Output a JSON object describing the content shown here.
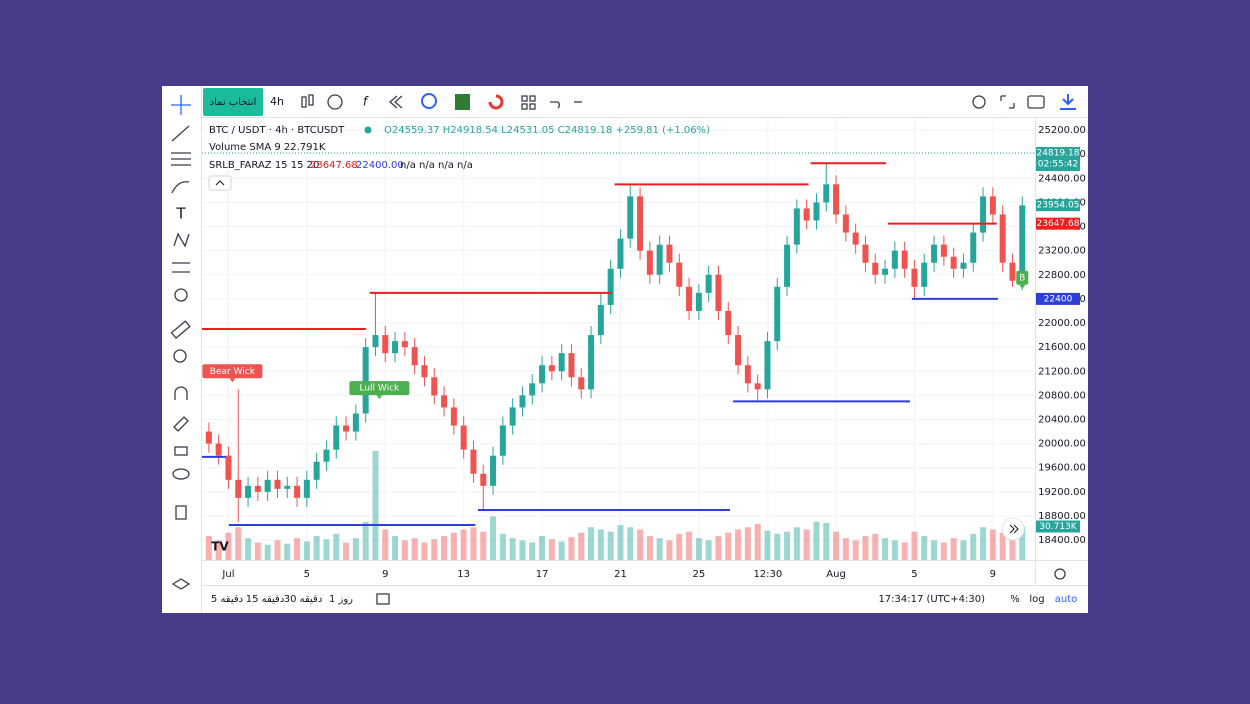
{
  "toolbar": {
    "symbol_button": "انتخاب نماد",
    "interval": "4h"
  },
  "legend": {
    "symbol": "BTC / USDT · 4h · BTCUSDT",
    "ohlc": "O24559.37 H24918.54 L24531.05 C24819.18 +259.81 (+1.06%)",
    "volume": "Volume SMA 9 22.791K",
    "indicator": "SRLB_FARAZ 15 15 20",
    "indicator_resistance": "23647.68",
    "indicator_support": "22400.00",
    "indicator_rest": "n/a n/a n/a n/a"
  },
  "bottom_bar": {
    "ranges": [
      "5 دقیقه",
      "15 دقیقه",
      "30 دقیقه",
      "1 روز"
    ],
    "clock": "17:34:17 (UTC+4:30)",
    "percent": "%",
    "log": "log",
    "auto": "auto"
  },
  "chart_data": {
    "type": "candlestick",
    "up_color": "#26a69a",
    "down_color": "#ef5350",
    "x": [
      -1,
      -0.5,
      0,
      0.5,
      1,
      1.5,
      2,
      2.5,
      3,
      3.5,
      4,
      4.5,
      5,
      5.5,
      6,
      6.5,
      7,
      7.5,
      8,
      8.5,
      9,
      9.5,
      10,
      10.5,
      11,
      11.5,
      12,
      12.5,
      13,
      13.5,
      14,
      14.5,
      15,
      15.5,
      16,
      16.5,
      17,
      17.5,
      18,
      18.5,
      19,
      19.5,
      20,
      20.5,
      21,
      21.5,
      22,
      22.5,
      23,
      23.5,
      24,
      24.5,
      25,
      25.5,
      26,
      26.5,
      27,
      27.5,
      28,
      28.5,
      29,
      29.5,
      30,
      30.5,
      31,
      31.5,
      32,
      32.5,
      33,
      33.5,
      34,
      34.5,
      35,
      35.5,
      36,
      36.5,
      37,
      37.5,
      38,
      38.5,
      39,
      39.5,
      40,
      40.5
    ],
    "open": [
      20200,
      20000,
      19800,
      19400,
      19100,
      19300,
      19200,
      19400,
      19250,
      19300,
      19100,
      19400,
      19700,
      19900,
      20300,
      20200,
      20500,
      21600,
      21800,
      21500,
      21700,
      21600,
      21300,
      21100,
      20800,
      20600,
      20300,
      19900,
      19500,
      19300,
      19800,
      20300,
      20600,
      20800,
      21000,
      21300,
      21200,
      21500,
      21100,
      20900,
      21800,
      22300,
      22900,
      23400,
      24100,
      23200,
      22800,
      23300,
      23000,
      22600,
      22200,
      22500,
      22800,
      22200,
      21800,
      21300,
      21000,
      20900,
      21700,
      22600,
      23300,
      23900,
      23700,
      24000,
      24300,
      23800,
      23500,
      23300,
      23000,
      22800,
      22900,
      23200,
      22900,
      22600,
      23000,
      23300,
      23100,
      22900,
      23000,
      23500,
      24100,
      23800,
      23000,
      22700
    ],
    "high": [
      20350,
      20150,
      19950,
      20900,
      19450,
      19450,
      19550,
      19550,
      19450,
      19450,
      19550,
      19850,
      20050,
      20450,
      20450,
      20650,
      21750,
      22500,
      21950,
      21850,
      21850,
      21750,
      21450,
      21250,
      20950,
      20750,
      20450,
      20050,
      19650,
      19950,
      20450,
      20750,
      20950,
      21150,
      21450,
      21450,
      21650,
      21650,
      21250,
      21950,
      22500,
      23050,
      23550,
      24300,
      24250,
      23350,
      23450,
      23450,
      23150,
      22750,
      22650,
      22950,
      22950,
      22350,
      21950,
      21450,
      21150,
      21850,
      22750,
      23450,
      24050,
      24050,
      24150,
      24650,
      24450,
      23950,
      23650,
      23450,
      23150,
      23050,
      23350,
      23350,
      23050,
      23150,
      23450,
      23450,
      23250,
      23150,
      23650,
      24250,
      24250,
      23950,
      23150,
      24100
    ],
    "low": [
      19850,
      19650,
      19250,
      18700,
      18950,
      19050,
      19050,
      19100,
      19100,
      18950,
      18950,
      19250,
      19550,
      19750,
      20050,
      20050,
      20350,
      21450,
      21350,
      21350,
      21450,
      21150,
      20950,
      20650,
      20450,
      20150,
      19750,
      19350,
      18900,
      19150,
      19650,
      20150,
      20450,
      20650,
      20850,
      21050,
      21050,
      20950,
      20750,
      20750,
      21650,
      22150,
      22750,
      23250,
      23050,
      22650,
      22650,
      22850,
      22450,
      22050,
      22050,
      22350,
      22050,
      21650,
      21150,
      20850,
      20700,
      20750,
      21550,
      22450,
      23150,
      23550,
      23550,
      23850,
      23650,
      23350,
      23150,
      22850,
      22650,
      22650,
      22750,
      22750,
      22400,
      22450,
      22850,
      22950,
      22750,
      22750,
      22850,
      23350,
      23650,
      22850,
      22600,
      22550
    ],
    "close": [
      20000,
      19800,
      19400,
      19100,
      19300,
      19200,
      19400,
      19250,
      19300,
      19100,
      19400,
      19700,
      19900,
      20300,
      20200,
      20500,
      21600,
      21800,
      21500,
      21700,
      21600,
      21300,
      21100,
      20800,
      20600,
      20300,
      19900,
      19500,
      19300,
      19800,
      20300,
      20600,
      20800,
      21000,
      21300,
      21200,
      21500,
      21100,
      20900,
      21800,
      22300,
      22900,
      23400,
      24100,
      23200,
      22800,
      23300,
      23000,
      22600,
      22200,
      22500,
      22800,
      22200,
      21800,
      21300,
      21000,
      20900,
      21700,
      22600,
      23300,
      23900,
      23700,
      24000,
      24300,
      23800,
      23500,
      23300,
      23000,
      22800,
      22900,
      23200,
      22900,
      22600,
      23000,
      23300,
      23100,
      22900,
      23000,
      23500,
      24100,
      23800,
      23000,
      22700,
      23950
    ],
    "xlim": [
      -1.35,
      41.15
    ],
    "ylim": [
      18070,
      25400
    ],
    "xticks": [
      {
        "value": 0,
        "label": "Jul"
      },
      {
        "value": 4,
        "label": "5"
      },
      {
        "value": 8,
        "label": "9"
      },
      {
        "value": 12,
        "label": "13"
      },
      {
        "value": 16,
        "label": "17"
      },
      {
        "value": 20,
        "label": "21"
      },
      {
        "value": 24,
        "label": "25"
      },
      {
        "value": 27.52,
        "label": "12:30"
      },
      {
        "value": 31,
        "label": "Aug"
      },
      {
        "value": 35,
        "label": "5"
      },
      {
        "value": 39,
        "label": "9"
      }
    ],
    "yticks": [
      {
        "value": 18400,
        "label": "18400.00"
      },
      {
        "value": 18800,
        "label": "18800.00"
      },
      {
        "value": 19200,
        "label": "19200.00"
      },
      {
        "value": 19600,
        "label": "19600.00"
      },
      {
        "value": 20000,
        "label": "20000.00"
      },
      {
        "value": 20400,
        "label": "20400.00"
      },
      {
        "value": 20800,
        "label": "20800.00"
      },
      {
        "value": 21200,
        "label": "21200.00"
      },
      {
        "value": 21600,
        "label": "21600.00"
      },
      {
        "value": 22000,
        "label": "22000.00"
      },
      {
        "value": 22400,
        "label": "22400.00"
      },
      {
        "value": 22800,
        "label": "22800.00"
      },
      {
        "value": 23200,
        "label": "23200.00"
      },
      {
        "value": 23600,
        "label": "23600.00"
      },
      {
        "value": 24000,
        "label": "24000.00"
      },
      {
        "value": 24400,
        "label": "24400.00"
      },
      {
        "value": 24800,
        "label": "24800.00"
      },
      {
        "value": 25200,
        "label": "25200.00"
      }
    ],
    "grid": true,
    "volume": {
      "values": [
        22,
        18,
        25,
        30,
        20,
        16,
        14,
        18,
        15,
        20,
        17,
        22,
        19,
        24,
        16,
        20,
        35,
        100,
        28,
        22,
        18,
        20,
        16,
        19,
        22,
        25,
        28,
        30,
        26,
        40,
        24,
        20,
        18,
        16,
        22,
        19,
        17,
        21,
        25,
        30,
        28,
        26,
        32,
        30,
        28,
        22,
        20,
        18,
        24,
        26,
        20,
        18,
        22,
        25,
        28,
        30,
        33,
        27,
        24,
        26,
        30,
        28,
        35,
        34,
        26,
        20,
        18,
        22,
        24,
        20,
        18,
        16,
        26,
        22,
        18,
        16,
        20,
        18,
        24,
        30,
        28,
        25,
        22,
        30.713
      ],
      "ylim": [
        0,
        110
      ],
      "last_label": {
        "value": 30.713,
        "label": "30.713K"
      }
    },
    "levels": [
      {
        "price": 21900,
        "start": -1.35,
        "end": 7.02,
        "color": "#f21c1c"
      },
      {
        "price": 22500,
        "start": 7.2,
        "end": 19.57,
        "color": "#f21c1c"
      },
      {
        "price": 24300,
        "start": 19.7,
        "end": 29.6,
        "color": "#f21c1c"
      },
      {
        "price": 24650,
        "start": 29.7,
        "end": 33.55,
        "color": "#f21c1c"
      },
      {
        "price": 23647.68,
        "start": 33.65,
        "end": 39.2,
        "color": "#f21c1c"
      },
      {
        "price": 19780,
        "start": -1.35,
        "end": -0.13,
        "color": "#2e3fd8"
      },
      {
        "price": 18650,
        "start": 0.02,
        "end": 12.6,
        "color": "#2e3fd8"
      },
      {
        "price": 18900,
        "start": 12.73,
        "end": 25.59,
        "color": "#2e3fd8"
      },
      {
        "price": 20700,
        "start": 25.74,
        "end": 34.77,
        "color": "#2e3fd8"
      },
      {
        "price": 22400,
        "start": 34.87,
        "end": 39.26,
        "color": "#2e3fd8"
      }
    ],
    "annotations": [
      {
        "text": "Bear Wick",
        "x": 0.2,
        "price": 21200,
        "color": "#ef5350"
      },
      {
        "text": "Lull Wick",
        "x": 7.7,
        "price": 20920,
        "color": "#4caf50"
      },
      {
        "text": "B",
        "x": 40.5,
        "price": 22750,
        "color": "#4caf50"
      }
    ],
    "price_labels": [
      {
        "value": 24819.18,
        "color": "#26a69a",
        "timer": "02:55:42"
      },
      {
        "value": 23954.05,
        "color": "#26a69a"
      },
      {
        "value": 23647.68,
        "color": "#f21c1c"
      },
      {
        "value": 22400.0,
        "color": "#2e3fd8"
      }
    ]
  }
}
